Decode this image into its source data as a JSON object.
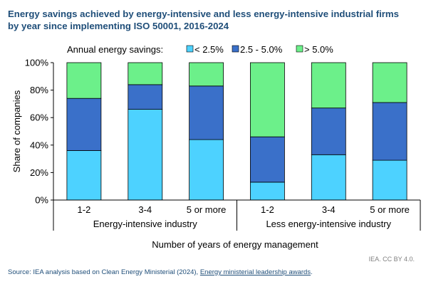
{
  "colors": {
    "low": "#4dd2ff",
    "mid": "#3a70c9",
    "high": "#6cf08a",
    "title": "#1f4e79"
  },
  "title": "Energy savings achieved by energy-intensive and less energy-intensive industrial firms by year since implementing ISO 50001, 2016-2024",
  "credit": "IEA. CC BY 4.0.",
  "source": {
    "text": "Source: IEA analysis based on Clean Energy Ministerial (2024), ",
    "link": "Energy ministerial leadership awards",
    "end": "."
  },
  "chart_data": {
    "type": "bar",
    "stacked": true,
    "title": "Energy savings achieved by energy-intensive and less energy-intensive industrial firms by year since implementing ISO 50001, 2016-2024",
    "legend_title": "Annual energy savings:",
    "legend_position": "top",
    "categories": [
      "1-2",
      "3-4",
      "5 or more",
      "1-2",
      "3-4",
      "5 or more"
    ],
    "groups": [
      {
        "label": "Energy-intensive industry",
        "count": 3
      },
      {
        "label": "Less energy-intensive industry",
        "count": 3
      }
    ],
    "series": [
      {
        "name": "< 2.5%",
        "color": "#4dd2ff",
        "values": [
          36,
          66,
          44,
          13,
          33,
          29
        ]
      },
      {
        "name": "2.5 - 5.0%",
        "color": "#3a70c9",
        "values": [
          38,
          18,
          39,
          33,
          34,
          42
        ]
      },
      {
        "name": "> 5.0%",
        "color": "#6cf08a",
        "values": [
          26,
          16,
          17,
          54,
          33,
          29
        ]
      }
    ],
    "xlabel": "Number of years of energy management",
    "ylabel": "Share of companies",
    "ylim": [
      0,
      100
    ],
    "yticks": [
      "0%",
      "20%",
      "40%",
      "60%",
      "80%",
      "100%"
    ],
    "grid": false
  }
}
